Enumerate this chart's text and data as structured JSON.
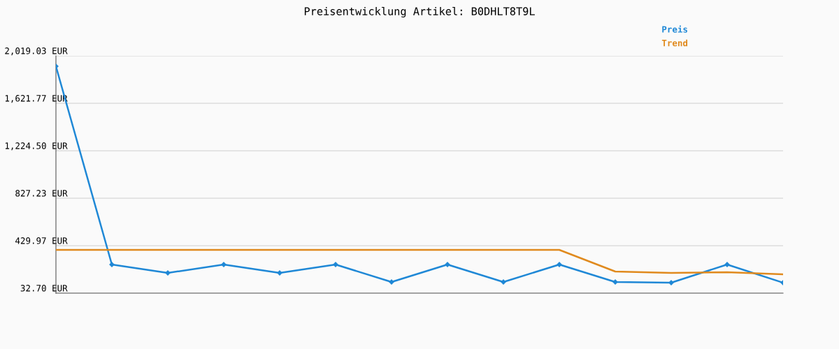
{
  "chart_data": {
    "type": "line",
    "title": "Preisentwicklung Artikel: B0DHLT8T9L",
    "categories": [
      null,
      null,
      null,
      null,
      null,
      null,
      null,
      null,
      null,
      null,
      null,
      null,
      null,
      null
    ],
    "series": [
      {
        "name": "Preis",
        "color": "#1f88d6",
        "marker": "diamond",
        "values": [
          1931.4,
          272.2,
          202.1,
          272.2,
          202.1,
          272.2,
          126.2,
          272.2,
          126.2,
          272.2,
          126.2,
          120.3,
          272.2,
          120.3
        ]
      },
      {
        "name": "Trend",
        "color": "#e08a1e",
        "marker": "none",
        "values": [
          394.9,
          394.9,
          394.9,
          394.9,
          394.9,
          394.9,
          394.9,
          394.9,
          394.9,
          394.9,
          213.8,
          202.1,
          208.0,
          190.4
        ]
      }
    ],
    "ylim": [
      32.7,
      2019.03
    ],
    "yticks": [
      {
        "value": 32.7,
        "label": "32.70 EUR"
      },
      {
        "value": 429.97,
        "label": "429.97 EUR"
      },
      {
        "value": 827.23,
        "label": "827.23 EUR"
      },
      {
        "value": 1224.5,
        "label": "1,224.50 EUR"
      },
      {
        "value": 1621.77,
        "label": "1,621.77 EUR"
      },
      {
        "value": 2019.03,
        "label": "2,019.03 EUR"
      }
    ],
    "grid": "y",
    "legend": "top right"
  }
}
